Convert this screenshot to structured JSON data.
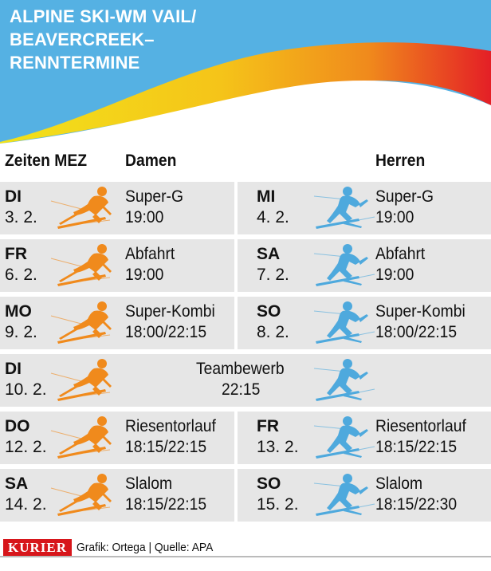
{
  "header": {
    "title_lines": [
      "ALPINE SKI-WM VAIL/",
      "BEAVERCREEK–",
      "RENNTERMINE"
    ],
    "colors": {
      "sky": "#55b1e3",
      "swoosh_start": "#f2e21a",
      "swoosh_end": "#e41f26"
    }
  },
  "columns": {
    "time": "Zeiten MEZ",
    "women": "Damen",
    "men": "Herren"
  },
  "colors": {
    "women_skier": "#f08a1c",
    "men_skier": "#4ea9dd",
    "cell_bg": "#e6e6e6"
  },
  "rows": [
    {
      "women": {
        "day": "DI",
        "date": "3. 2.",
        "event": "Super-G",
        "time": "19:00"
      },
      "men": {
        "day": "MI",
        "date": "4. 2.",
        "event": "Super-G",
        "time": "19:00"
      }
    },
    {
      "women": {
        "day": "FR",
        "date": "6. 2.",
        "event": "Abfahrt",
        "time": "19:00"
      },
      "men": {
        "day": "SA",
        "date": "7. 2.",
        "event": "Abfahrt",
        "time": "19:00"
      }
    },
    {
      "women": {
        "day": "MO",
        "date": "9. 2.",
        "event": "Super-Kombi",
        "time": "18:00/22:15"
      },
      "men": {
        "day": "SO",
        "date": "8. 2.",
        "event": "Super-Kombi",
        "time": "18:00/22:15"
      }
    },
    {
      "team": {
        "day": "DI",
        "date": "10. 2.",
        "event": "Teambewerb",
        "time": "22:15"
      }
    },
    {
      "women": {
        "day": "DO",
        "date": "12. 2.",
        "event": "Riesentorlauf",
        "time": "18:15/22:15"
      },
      "men": {
        "day": "FR",
        "date": "13. 2.",
        "event": "Riesentorlauf",
        "time": "18:15/22:15"
      }
    },
    {
      "women": {
        "day": "SA",
        "date": "14. 2.",
        "event": "Slalom",
        "time": "18:15/22:15"
      },
      "men": {
        "day": "SO",
        "date": "15. 2.",
        "event": "Slalom",
        "time": "18:15/22:30"
      }
    }
  ],
  "footer": {
    "logo": "KURIER",
    "credit": "Grafik: Ortega |  Quelle: APA"
  }
}
